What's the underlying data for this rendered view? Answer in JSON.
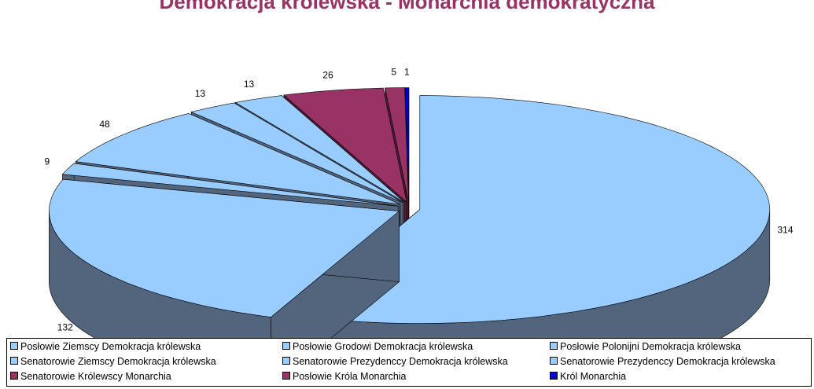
{
  "chart_data": {
    "type": "pie",
    "title": "Demokracja królewska - Monarchia demokratyczna",
    "three_d": true,
    "exploded": true,
    "show_values": true,
    "slices": [
      {
        "label": "Posłowie Ziemscy Demokracja królewska",
        "value": 314,
        "color": "#99CCFF"
      },
      {
        "label": "Posłowie Grodowi Demokracja królewska",
        "value": 132,
        "color": "#99CCFF"
      },
      {
        "label": "Posłowie Polonijni Demokracja królewska",
        "value": 9,
        "color": "#99CCFF"
      },
      {
        "label": "Senatorowie Ziemscy Demokracja królewska",
        "value": 48,
        "color": "#99CCFF"
      },
      {
        "label": "Senatorowie Prezydenccy Demokracja królewska",
        "value": 13,
        "color": "#99CCFF"
      },
      {
        "label": "Senatorowie Prezydenccy Demokracja królewska",
        "value": 13,
        "color": "#99CCFF"
      },
      {
        "label": "Senatorowie Królewscy Monarchia",
        "value": 26,
        "color": "#993366"
      },
      {
        "label": "Posłowie Króla Monarchia",
        "value": 5,
        "color": "#993366"
      },
      {
        "label": "Król Monarchia",
        "value": 1,
        "color": "#0000CC"
      }
    ],
    "legend_position": "bottom"
  }
}
